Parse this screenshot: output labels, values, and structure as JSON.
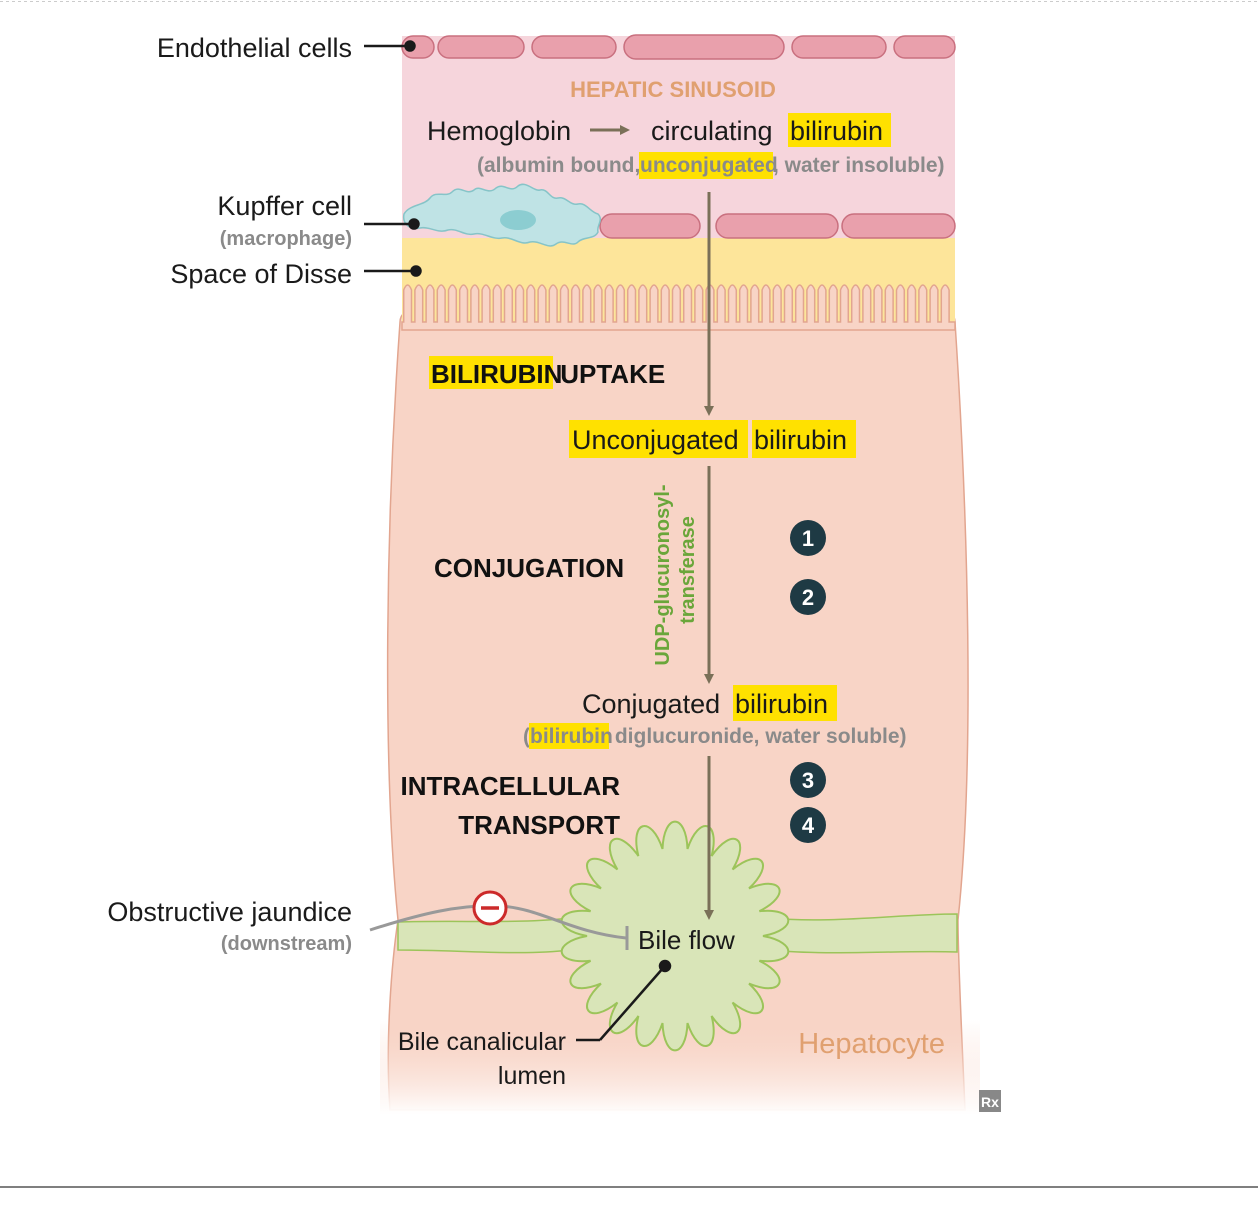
{
  "labels": {
    "endothelial": "Endothelial cells",
    "kupffer": "Kupffer cell",
    "kupffer_sub": "(macrophage)",
    "disse": "Space of Disse",
    "obstructive": "Obstructive jaundice",
    "obstructive_sub": "(downstream)",
    "canalicular_1": "Bile canalicular",
    "canalicular_2": "lumen",
    "hepatocyte": "Hepatocyte",
    "bile_flow": "Bile flow",
    "rx_logo": "Rx"
  },
  "sinusoid": {
    "title": "HEPATIC SINUSOID",
    "hemoglobin": "Hemoglobin",
    "circulating": "circulating",
    "bilirubin": "bilirubin",
    "sub_open": "(albumin bound, ",
    "sub_unconj": "unconjugated",
    "sub_close": ", water insoluble)"
  },
  "steps": {
    "uptake_hl": "BILIRUBIN",
    "uptake_rest": " UPTAKE",
    "conjugation": "CONJUGATION",
    "transport_1": "INTRACELLULAR",
    "transport_2": "TRANSPORT"
  },
  "products": {
    "unconj_word": "Unconjugated",
    "bilirubin": "bilirubin",
    "conj_word": "Conjugated",
    "conj_sub_open": "(",
    "conj_sub_rest": " diglucuronide, water soluble)"
  },
  "enzyme": {
    "line1": "UDP-glucuronosyl-",
    "line2": "transferase"
  },
  "markers": [
    "1",
    "2",
    "3",
    "4"
  ],
  "colors": {
    "sinusoid": "#f6d5dc",
    "endothelium": "#e9a0ac",
    "disse": "#fde59a",
    "hepatocyte": "#f8d4c6",
    "canaliculus": "#d9e5b8",
    "kupffer": "#bfe3e5",
    "highlight": "#ffe100",
    "arrow": "#7a7058",
    "enzyme_text": "#6aa63a",
    "sinusoid_title": "#e0a070",
    "hepatocyte_label": "#e0a070",
    "inhibit": "#cc2a2a",
    "marker": "#1e3a44"
  }
}
